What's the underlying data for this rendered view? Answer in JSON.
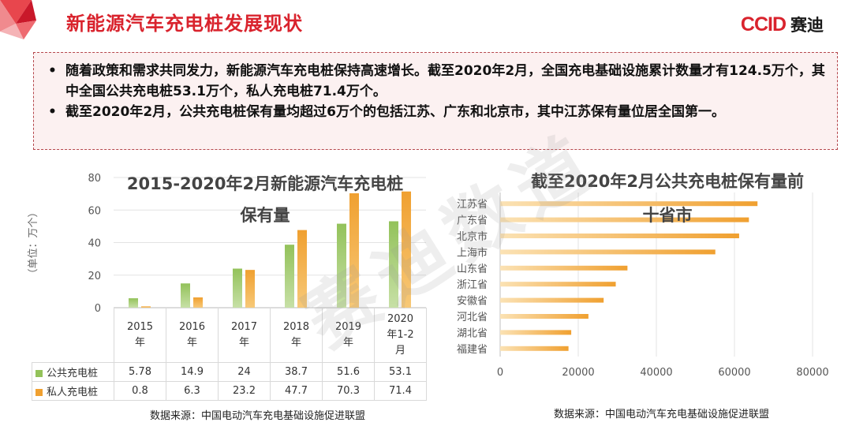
{
  "header": {
    "title": "新能源汽车充电桩发展现状",
    "logo_en": "CCID",
    "logo_cn": "赛迪"
  },
  "summary": {
    "bullets": [
      "随着政策和需求共同发力，新能源汽车充电桩保持高速增长。截至2020年2月，全国充电基础设施累计数量才有124.5万个，其中全国公共充电桩53.1万个，私人充电桩71.4万个。",
      "截至2020年2月，公共充电桩保有量均超过6万个的包括江苏、广东和北京市，其中江苏保有量位居全国第一。"
    ]
  },
  "watermark": "赛迪数道",
  "colors": {
    "red": "#d9232d",
    "green": "#93c25a",
    "orange": "#f0a030",
    "orange_light": "#f7c978"
  },
  "chart_data": [
    {
      "type": "bar",
      "title_line1": "2015-2020年2月新能源汽车充电桩",
      "title_line2": "保有量",
      "ylabel": "（单位：万个）",
      "ylim": [
        0,
        80
      ],
      "yticks": [
        "0",
        "20",
        "40",
        "60",
        "80"
      ],
      "categories": [
        "2015\n年",
        "2016\n年",
        "2017\n年",
        "2018\n年",
        "2019\n年",
        "2020\n年1-2\n月"
      ],
      "series": [
        {
          "name": "公共充电桩",
          "values": [
            5.78,
            14.9,
            24,
            38.7,
            51.6,
            53.1
          ],
          "labels": [
            "5.78",
            "14.9",
            "24",
            "38.7",
            "51.6",
            "53.1"
          ]
        },
        {
          "name": "私人充电桩",
          "values": [
            0.8,
            6.3,
            23.2,
            47.7,
            70.3,
            71.4
          ],
          "labels": [
            "0.8",
            "6.3",
            "23.2",
            "47.7",
            "70.3",
            "71.4"
          ]
        }
      ],
      "source": "数据来源：中国电动汽车充电基础设施促进联盟"
    },
    {
      "type": "bar",
      "orientation": "horizontal",
      "title_line1": "截至2020年2月公共充电桩保有量前",
      "title_line2": "十省市",
      "categories": [
        "江苏省",
        "广东省",
        "北京市",
        "上海市",
        "山东省",
        "浙江省",
        "安徽省",
        "河北省",
        "湖北省",
        "福建省"
      ],
      "values": [
        65900,
        63700,
        61200,
        55100,
        32600,
        29600,
        26500,
        22600,
        18200,
        17500
      ],
      "xlim": [
        0,
        80000
      ],
      "xticks": [
        "0",
        "20000",
        "40000",
        "60000",
        "80000"
      ],
      "source": "数据来源：中国电动汽车充电基础设施促进联盟"
    }
  ]
}
